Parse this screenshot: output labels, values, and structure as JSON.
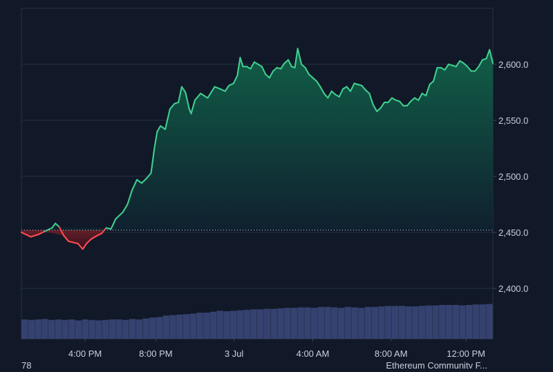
{
  "chart_data": {
    "type": "area",
    "baseline": 2452,
    "ylim": [
      2355,
      2650
    ],
    "y_ticks": [
      2400,
      2450,
      2500,
      2550,
      2600
    ],
    "y_tick_labels": [
      "2,400.0",
      "2,450.0",
      "2,500.0",
      "2,550.0",
      "2,600.0"
    ],
    "x_ticks": [
      {
        "t": 0.135,
        "label": "4:00 PM"
      },
      {
        "t": 0.285,
        "label": "8:00 PM"
      },
      {
        "t": 0.451,
        "label": "3 Jul"
      },
      {
        "t": 0.618,
        "label": "4:00 AM"
      },
      {
        "t": 0.784,
        "label": "8:00 AM"
      },
      {
        "t": 0.943,
        "label": "12:00 PM"
      }
    ],
    "price_points": [
      [
        0.0,
        2450
      ],
      [
        0.01,
        2448
      ],
      [
        0.02,
        2446
      ],
      [
        0.035,
        2448
      ],
      [
        0.05,
        2451
      ],
      [
        0.065,
        2454
      ],
      [
        0.072,
        2458
      ],
      [
        0.08,
        2455
      ],
      [
        0.09,
        2447
      ],
      [
        0.1,
        2442
      ],
      [
        0.11,
        2441
      ],
      [
        0.12,
        2440
      ],
      [
        0.13,
        2435
      ],
      [
        0.138,
        2440
      ],
      [
        0.148,
        2444
      ],
      [
        0.16,
        2447
      ],
      [
        0.17,
        2449
      ],
      [
        0.18,
        2454
      ],
      [
        0.19,
        2453
      ],
      [
        0.2,
        2462
      ],
      [
        0.215,
        2468
      ],
      [
        0.225,
        2475
      ],
      [
        0.235,
        2488
      ],
      [
        0.245,
        2497
      ],
      [
        0.255,
        2494
      ],
      [
        0.265,
        2498
      ],
      [
        0.275,
        2503
      ],
      [
        0.282,
        2525
      ],
      [
        0.288,
        2540
      ],
      [
        0.295,
        2545
      ],
      [
        0.305,
        2542
      ],
      [
        0.315,
        2560
      ],
      [
        0.325,
        2565
      ],
      [
        0.333,
        2566
      ],
      [
        0.34,
        2580
      ],
      [
        0.348,
        2575
      ],
      [
        0.356,
        2560
      ],
      [
        0.36,
        2556
      ],
      [
        0.368,
        2568
      ],
      [
        0.38,
        2574
      ],
      [
        0.395,
        2570
      ],
      [
        0.41,
        2580
      ],
      [
        0.422,
        2578
      ],
      [
        0.432,
        2576
      ],
      [
        0.44,
        2581
      ],
      [
        0.45,
        2583
      ],
      [
        0.458,
        2590
      ],
      [
        0.464,
        2606
      ],
      [
        0.47,
        2598
      ],
      [
        0.478,
        2598
      ],
      [
        0.486,
        2596
      ],
      [
        0.494,
        2602
      ],
      [
        0.502,
        2600
      ],
      [
        0.51,
        2598
      ],
      [
        0.518,
        2591
      ],
      [
        0.526,
        2588
      ],
      [
        0.534,
        2594
      ],
      [
        0.542,
        2597
      ],
      [
        0.55,
        2596
      ],
      [
        0.558,
        2601
      ],
      [
        0.566,
        2604
      ],
      [
        0.573,
        2598
      ],
      [
        0.58,
        2597
      ],
      [
        0.586,
        2614
      ],
      [
        0.594,
        2600
      ],
      [
        0.602,
        2597
      ],
      [
        0.61,
        2591
      ],
      [
        0.618,
        2588
      ],
      [
        0.626,
        2585
      ],
      [
        0.634,
        2580
      ],
      [
        0.642,
        2574
      ],
      [
        0.65,
        2570
      ],
      [
        0.658,
        2576
      ],
      [
        0.666,
        2573
      ],
      [
        0.674,
        2571
      ],
      [
        0.682,
        2578
      ],
      [
        0.69,
        2580
      ],
      [
        0.698,
        2576
      ],
      [
        0.706,
        2583
      ],
      [
        0.714,
        2582
      ],
      [
        0.722,
        2581
      ],
      [
        0.73,
        2577
      ],
      [
        0.738,
        2574
      ],
      [
        0.746,
        2564
      ],
      [
        0.754,
        2558
      ],
      [
        0.762,
        2561
      ],
      [
        0.77,
        2566
      ],
      [
        0.778,
        2566
      ],
      [
        0.786,
        2570
      ],
      [
        0.794,
        2568
      ],
      [
        0.802,
        2567
      ],
      [
        0.81,
        2563
      ],
      [
        0.818,
        2563
      ],
      [
        0.826,
        2567
      ],
      [
        0.834,
        2570
      ],
      [
        0.842,
        2568
      ],
      [
        0.85,
        2574
      ],
      [
        0.858,
        2572
      ],
      [
        0.866,
        2582
      ],
      [
        0.874,
        2585
      ],
      [
        0.882,
        2597
      ],
      [
        0.89,
        2597
      ],
      [
        0.898,
        2595
      ],
      [
        0.906,
        2600
      ],
      [
        0.914,
        2599
      ],
      [
        0.922,
        2598
      ],
      [
        0.93,
        2603
      ],
      [
        0.938,
        2601
      ],
      [
        0.946,
        2598
      ],
      [
        0.954,
        2594
      ],
      [
        0.962,
        2594
      ],
      [
        0.97,
        2598
      ],
      [
        0.978,
        2604
      ],
      [
        0.986,
        2605
      ],
      [
        0.993,
        2613
      ],
      [
        1.0,
        2601
      ]
    ],
    "up_color": "#3ecf8e",
    "down_color": "#ff4d4f",
    "area_fill_color": "#0f6b4f",
    "volume_color": "#3a4779",
    "volume_bars": [
      0.4,
      0.39,
      0.4,
      0.41,
      0.39,
      0.4,
      0.39,
      0.4,
      0.38,
      0.4,
      0.39,
      0.38,
      0.39,
      0.4,
      0.4,
      0.39,
      0.41,
      0.4,
      0.42,
      0.44,
      0.45,
      0.48,
      0.49,
      0.5,
      0.51,
      0.52,
      0.54,
      0.54,
      0.56,
      0.58,
      0.57,
      0.58,
      0.59,
      0.6,
      0.61,
      0.61,
      0.62,
      0.62,
      0.63,
      0.64,
      0.64,
      0.65,
      0.65,
      0.64,
      0.66,
      0.66,
      0.65,
      0.64,
      0.66,
      0.65,
      0.64,
      0.66,
      0.66,
      0.67,
      0.68,
      0.68,
      0.68,
      0.67,
      0.67,
      0.68,
      0.69,
      0.69,
      0.7,
      0.7,
      0.7,
      0.69,
      0.7,
      0.71,
      0.71,
      0.72
    ],
    "footer_left": "78",
    "footer_right": "Ethereum Community F..."
  }
}
